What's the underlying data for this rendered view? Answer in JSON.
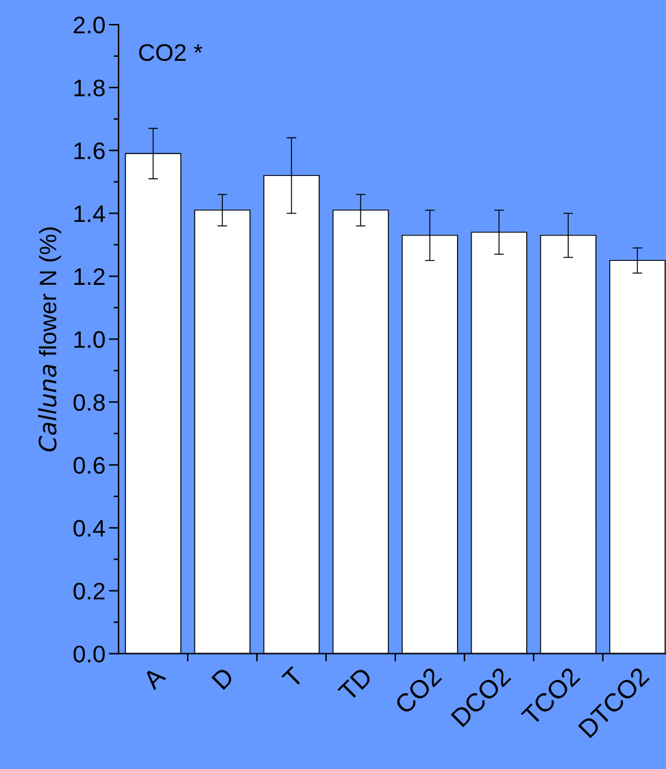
{
  "chart_data": {
    "type": "bar",
    "ylabel": "Calluna flower N (%)",
    "categories": [
      "A",
      "D",
      "T",
      "TD",
      "CO2",
      "DCO2",
      "TCO2",
      "DTCO2"
    ],
    "values": [
      1.59,
      1.41,
      1.52,
      1.41,
      1.33,
      1.34,
      1.33,
      1.25
    ],
    "errors": [
      0.08,
      0.05,
      0.12,
      0.05,
      0.08,
      0.07,
      0.07,
      0.04
    ],
    "color": "#ffffff",
    "ylim": [
      0,
      2.0
    ],
    "yticks": [
      {
        "value": 0,
        "label": "0.0"
      },
      {
        "value": 0.2,
        "label": "0.2"
      },
      {
        "value": 0.4,
        "label": "0.4"
      },
      {
        "value": 0.6,
        "label": "0.6"
      },
      {
        "value": 0.8,
        "label": "0.8"
      },
      {
        "value": 1.0,
        "label": "1.0"
      },
      {
        "value": 1.2,
        "label": "1.2"
      },
      {
        "value": 1.4,
        "label": "1.4"
      },
      {
        "value": 1.6,
        "label": "1.6"
      },
      {
        "value": 1.8,
        "label": "1.8"
      },
      {
        "value": 2.0,
        "label": "2.0"
      }
    ],
    "annotations": [
      "CO2 *"
    ],
    "grid": false
  }
}
